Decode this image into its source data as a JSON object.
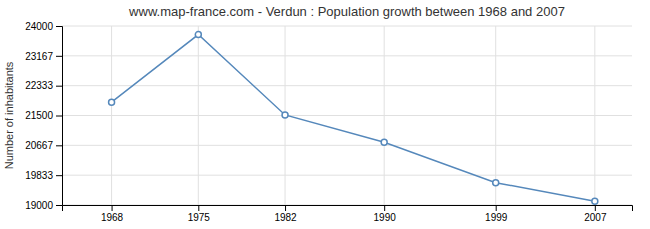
{
  "chart_data": {
    "type": "line",
    "title": "www.map-france.com - Verdun : Population growth between 1968 and 2007",
    "ylabel": "Number of inhabitants",
    "x": [
      1968,
      1975,
      1982,
      1990,
      1999,
      2007
    ],
    "values": [
      21872,
      23761,
      21516,
      20753,
      19624,
      19107
    ],
    "color": "#5588bb",
    "marker": "circle",
    "xlim": [
      1964,
      2010
    ],
    "xticks": [
      1968,
      1975,
      1982,
      1990,
      1999,
      2007
    ],
    "ylim": [
      19000,
      24000
    ],
    "yticks": [
      19000,
      19833,
      20667,
      21500,
      22333,
      23167,
      24000
    ],
    "grid": true
  }
}
